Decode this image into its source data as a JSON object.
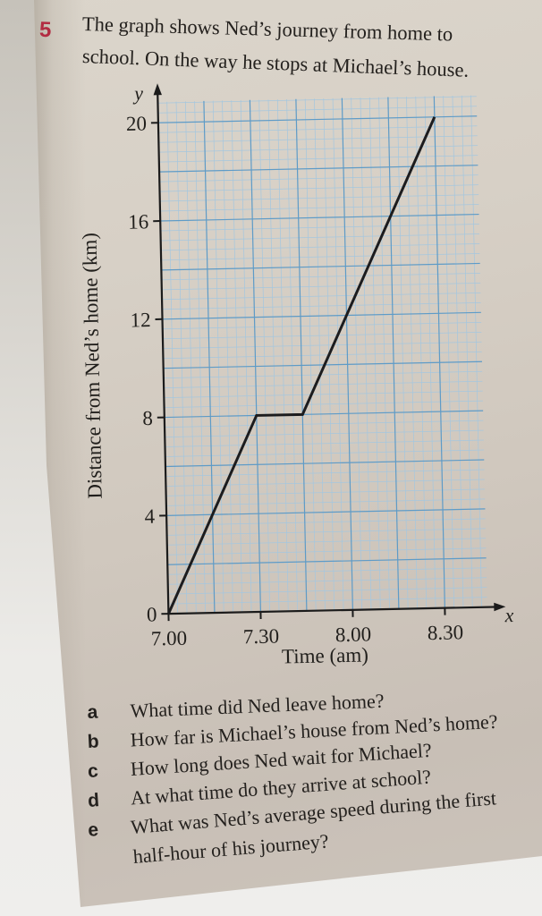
{
  "page": {
    "question_number": "5",
    "number_color": "#b22c42",
    "intro_lines": [
      "The graph shows Ned’s journey from home to",
      "school. On the way he stops at Michael’s house."
    ]
  },
  "chart_data": {
    "type": "line",
    "xlabel": "Time (am)",
    "ylabel": "Distance from Ned’s home (km)",
    "x_axis_letter": "x",
    "y_axis_letter": "y",
    "x_ticks": [
      {
        "label": "7.00",
        "hours": 7.0
      },
      {
        "label": "7.30",
        "hours": 7.5
      },
      {
        "label": "8.00",
        "hours": 8.0
      },
      {
        "label": "8.30",
        "hours": 8.5
      }
    ],
    "y_ticks": [
      {
        "label": "20",
        "km": 20
      },
      {
        "label": "16",
        "km": 16
      },
      {
        "label": "12",
        "km": 12
      },
      {
        "label": "8",
        "km": 8
      },
      {
        "label": "4",
        "km": 4
      },
      {
        "label": "0",
        "km": 0
      }
    ],
    "xlim": [
      7.0,
      8.73
    ],
    "ylim": [
      0,
      20.85
    ],
    "grid": {
      "minor_minutes": 3,
      "minor_km": 0.4,
      "major_minutes": 15,
      "major_km": 2,
      "minor_color": "#a6c7de",
      "major_color": "#5e9bc7"
    },
    "line_color": "#1c1c1e",
    "series": [
      {
        "name": "Ned’s journey",
        "points": [
          {
            "time": "7.00",
            "hours": 7.0,
            "km": 0
          },
          {
            "time": "7.30",
            "hours": 7.5,
            "km": 8
          },
          {
            "time": "7.45",
            "hours": 7.75,
            "km": 8
          },
          {
            "time": "8.30",
            "hours": 8.5,
            "km": 20
          }
        ]
      }
    ]
  },
  "questions": [
    {
      "letter": "a",
      "text": "What time did Ned leave home?"
    },
    {
      "letter": "b",
      "text": "How far is Michael’s house from Ned’s home?"
    },
    {
      "letter": "c",
      "text": "How long does Ned wait for Michael?"
    },
    {
      "letter": "d",
      "text": "At what time do they arrive at school?"
    },
    {
      "letter": "e",
      "text": "What was Ned’s average speed during the first half-hour of his journey?"
    }
  ]
}
